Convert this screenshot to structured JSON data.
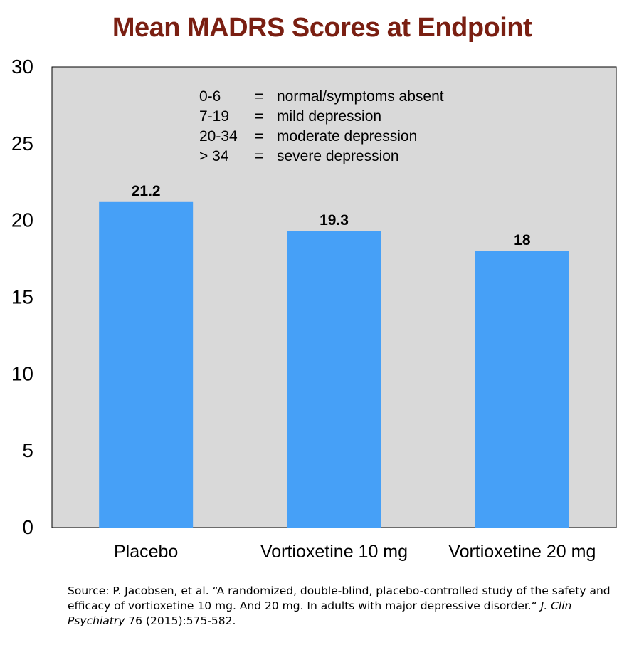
{
  "colors": {
    "title": "#7a1f12",
    "plot_background": "#d9d9d9",
    "bar": "#46a0f7",
    "axis": "#000000"
  },
  "chart_data": {
    "type": "bar",
    "title": "Mean MADRS Scores at Endpoint",
    "categories": [
      "Placebo",
      "Vortioxetine 10 mg",
      "Vortioxetine 20 mg"
    ],
    "values": [
      21.2,
      19.3,
      18
    ],
    "value_labels": [
      "21.2",
      "19.3",
      "18"
    ],
    "ylim": [
      0,
      30
    ],
    "yticks": [
      0,
      5,
      10,
      15,
      20,
      25,
      30
    ],
    "ytick_labels": [
      "0",
      "5",
      "10",
      "15",
      "20",
      "25",
      "30"
    ],
    "xlabel": "",
    "ylabel": "",
    "grid": false,
    "legend_placement": "none",
    "annotation": [
      {
        "range": "0-6",
        "eq": "=",
        "meaning": "normal/symptoms absent"
      },
      {
        "range": "7-19",
        "eq": "=",
        "meaning": "mild depression"
      },
      {
        "range": "20-34",
        "eq": "=",
        "meaning": "moderate depression"
      },
      {
        "range": "> 34",
        "eq": "=",
        "meaning": "severe depression"
      }
    ]
  },
  "source": {
    "prefix": "Source: P. Jacobsen, et al. “A randomized, double-blind, placebo-controlled study of the safety and efficacy of vortioxetine 10 mg. And 20 mg. In adults with major depressive disorder.“ ",
    "journal": "J. Clin Psychiatry",
    "suffix": " 76 (2015):575-582."
  }
}
